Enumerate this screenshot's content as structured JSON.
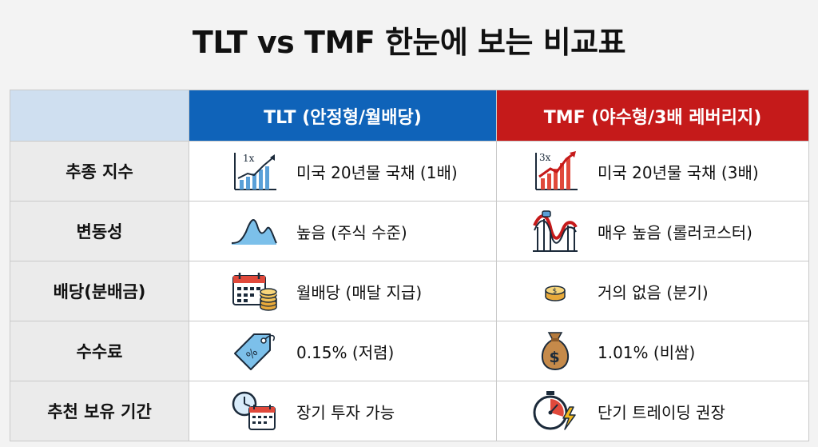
{
  "title": "TLT vs TMF 한눈에 보는 비교표",
  "headers": {
    "tlt": "TLT (안정형/월배당)",
    "tmf": "TMF (야수형/3배 레버리지)"
  },
  "colors": {
    "tlt_header": "#0f63b9",
    "tmf_header": "#c51a1a",
    "corner": "#cfdff0",
    "label_bg": "#ebebeb"
  },
  "rows": [
    {
      "label": "추종 지수",
      "tlt": {
        "icon": "chart-growth-1x-icon",
        "icon_text": "1x",
        "text": "미국 20년물 국채 (1배)"
      },
      "tmf": {
        "icon": "chart-growth-3x-icon",
        "icon_text": "3x",
        "text": "미국 20년물 국채 (3배)"
      }
    },
    {
      "label": "변동성",
      "tlt": {
        "icon": "wave-icon",
        "text": "높음 (주식 수준)"
      },
      "tmf": {
        "icon": "roller-coaster-icon",
        "text": "매우 높음 (롤러코스터)"
      }
    },
    {
      "label": "배당(분배금)",
      "tlt": {
        "icon": "calendar-coins-icon",
        "text": "월배당 (매달 지급)"
      },
      "tmf": {
        "icon": "coin-stack-icon",
        "text": "거의 없음 (분기)"
      }
    },
    {
      "label": "수수료",
      "tlt": {
        "icon": "price-tag-icon",
        "text": "0.15% (저렴)"
      },
      "tmf": {
        "icon": "money-bag-icon",
        "text": "1.01% (비쌈)"
      }
    },
    {
      "label": "추천 보유 기간",
      "tlt": {
        "icon": "clock-calendar-icon",
        "text": "장기 투자 가능"
      },
      "tmf": {
        "icon": "stopwatch-lightning-icon",
        "text": "단기 트레이딩 권장"
      }
    }
  ]
}
